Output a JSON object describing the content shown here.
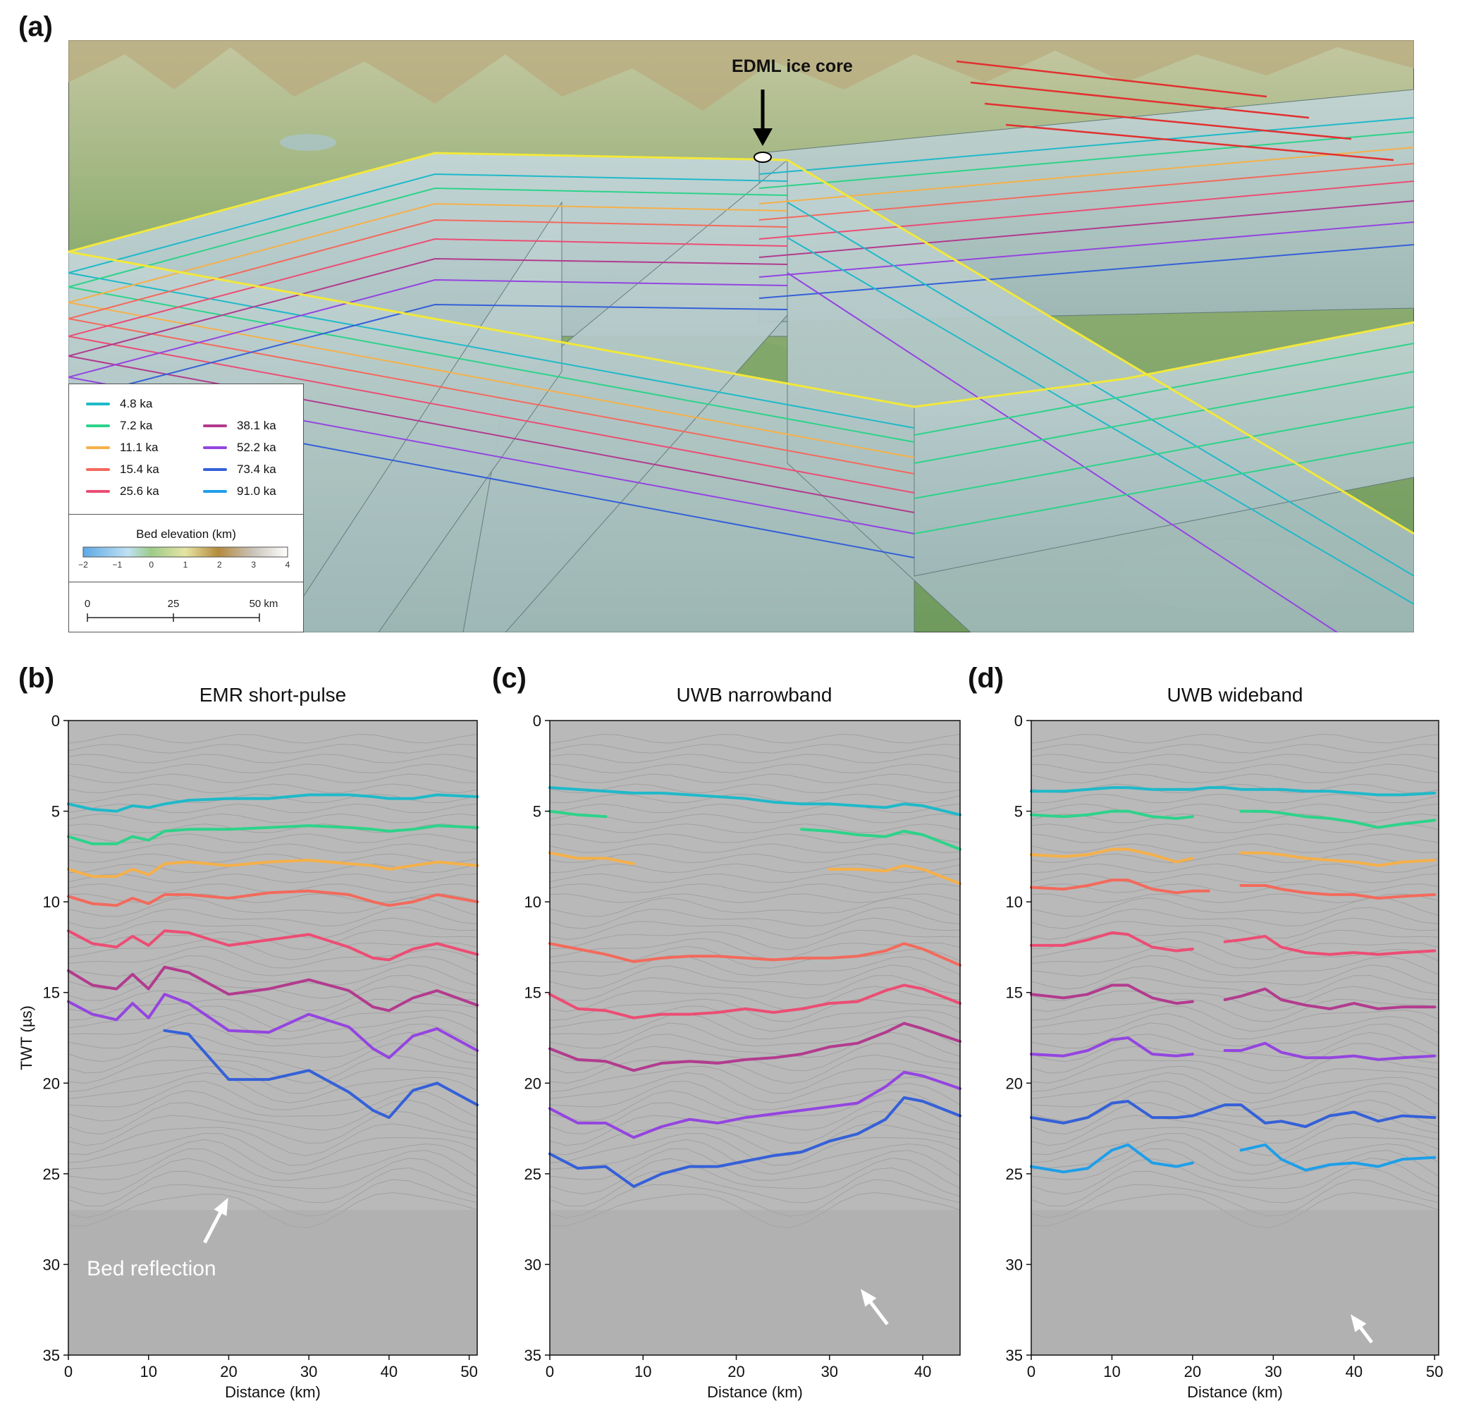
{
  "panels": {
    "a": {
      "label": "(a)",
      "annotation": "EDML ice core"
    },
    "b": {
      "label": "(b)",
      "title": "EMR short-pulse",
      "annotation": "Bed reflection"
    },
    "c": {
      "label": "(c)",
      "title": "UWB narrowband"
    },
    "d": {
      "label": "(d)",
      "title": "UWB wideband"
    }
  },
  "legend": {
    "items": [
      {
        "label": "4.8 ka",
        "color": "#1fb9c9"
      },
      {
        "label": "7.2 ka",
        "color": "#2dd38a"
      },
      {
        "label": "11.1 ka",
        "color": "#f5b04a"
      },
      {
        "label": "15.4 ka",
        "color": "#f36a5c"
      },
      {
        "label": "25.6 ka",
        "color": "#ec4d74"
      },
      {
        "label": "38.1 ka",
        "color": "#b23b8e"
      },
      {
        "label": "52.2 ka",
        "color": "#9445e0"
      },
      {
        "label": "73.4 ka",
        "color": "#3560d8"
      },
      {
        "label": "91.0 ka",
        "color": "#1f9fe8"
      }
    ],
    "bed_title": "Bed elevation (km)",
    "bed_ticks": [
      "−2",
      "−1",
      "0",
      "1",
      "2",
      "3",
      "4"
    ],
    "scale_ticks": [
      "0",
      "25",
      "50 km"
    ]
  },
  "chart_data": [
    {
      "type": "line",
      "title": "EMR short-pulse",
      "xlabel": "Distance (km)",
      "ylabel": "TWT (µs)",
      "xlim": [
        0,
        51
      ],
      "ylim": [
        35,
        0
      ],
      "xticks": [
        "0",
        "10",
        "20",
        "30",
        "40",
        "50"
      ],
      "yticks": [
        "0",
        "5",
        "10",
        "15",
        "20",
        "25",
        "30",
        "35"
      ],
      "x": [
        0,
        3,
        6,
        8,
        10,
        12,
        15,
        20,
        25,
        30,
        35,
        38,
        40,
        43,
        46,
        51
      ],
      "series": [
        {
          "values": [
            4.6,
            4.9,
            5.0,
            4.7,
            4.8,
            4.6,
            4.4,
            4.3,
            4.3,
            4.1,
            4.1,
            4.2,
            4.3,
            4.3,
            4.1,
            4.2
          ]
        },
        {
          "values": [
            6.4,
            6.8,
            6.8,
            6.4,
            6.6,
            6.1,
            6.0,
            6.0,
            5.9,
            5.8,
            5.9,
            6.0,
            6.1,
            6.0,
            5.8,
            5.9
          ]
        },
        {
          "values": [
            8.2,
            8.6,
            8.6,
            8.2,
            8.5,
            7.9,
            7.8,
            8.0,
            7.8,
            7.7,
            7.9,
            8.0,
            8.2,
            8.0,
            7.8,
            8.0
          ]
        },
        {
          "values": [
            9.7,
            10.1,
            10.2,
            9.8,
            10.1,
            9.6,
            9.6,
            9.8,
            9.5,
            9.4,
            9.6,
            10.0,
            10.2,
            10.0,
            9.6,
            10.0
          ]
        },
        {
          "values": [
            11.6,
            12.3,
            12.5,
            11.9,
            12.4,
            11.6,
            11.7,
            12.4,
            12.1,
            11.8,
            12.5,
            13.1,
            13.2,
            12.6,
            12.3,
            12.9
          ]
        },
        {
          "values": [
            13.8,
            14.6,
            14.8,
            14.0,
            14.8,
            13.6,
            13.9,
            15.1,
            14.8,
            14.3,
            14.9,
            15.8,
            16.0,
            15.3,
            14.9,
            15.7
          ]
        },
        {
          "values": [
            15.5,
            16.2,
            16.5,
            15.6,
            16.4,
            15.1,
            15.6,
            17.1,
            17.2,
            16.2,
            16.9,
            18.1,
            18.6,
            17.4,
            17.0,
            18.2
          ]
        },
        {
          "values": [
            null,
            null,
            null,
            null,
            null,
            17.1,
            17.3,
            19.8,
            19.8,
            19.3,
            20.5,
            21.5,
            21.9,
            20.4,
            20.0,
            21.2
          ]
        }
      ]
    },
    {
      "type": "line",
      "title": "UWB narrowband",
      "xlabel": "Distance (km)",
      "ylabel": "",
      "xlim": [
        0,
        44
      ],
      "ylim": [
        35,
        0
      ],
      "xticks": [
        "0",
        "10",
        "20",
        "30",
        "40"
      ],
      "yticks": [
        "0",
        "5",
        "10",
        "15",
        "20",
        "25",
        "30",
        "35"
      ],
      "x": [
        0,
        3,
        6,
        9,
        12,
        15,
        18,
        21,
        24,
        27,
        30,
        33,
        36,
        38,
        40,
        44
      ],
      "series": [
        {
          "values": [
            3.7,
            3.8,
            3.9,
            4.0,
            4.0,
            4.1,
            4.2,
            4.3,
            4.5,
            4.6,
            4.6,
            4.7,
            4.8,
            4.6,
            4.7,
            5.2
          ]
        },
        {
          "values": [
            5.0,
            5.2,
            5.3,
            null,
            null,
            null,
            null,
            null,
            null,
            6.0,
            6.1,
            6.3,
            6.4,
            6.1,
            6.3,
            7.1
          ]
        },
        {
          "values": [
            7.3,
            7.6,
            7.6,
            7.9,
            null,
            null,
            null,
            null,
            null,
            null,
            8.2,
            8.2,
            8.3,
            8.0,
            8.2,
            9.0
          ]
        },
        {
          "values": [
            12.3,
            12.6,
            12.9,
            13.3,
            13.1,
            13.0,
            13.0,
            13.1,
            13.2,
            13.1,
            13.1,
            13.0,
            12.7,
            12.3,
            12.6,
            13.5
          ]
        },
        {
          "values": [
            15.1,
            15.9,
            16.0,
            16.4,
            16.2,
            16.2,
            16.1,
            15.9,
            16.1,
            15.9,
            15.6,
            15.5,
            14.9,
            14.6,
            14.8,
            15.6
          ]
        },
        {
          "values": [
            18.1,
            18.7,
            18.8,
            19.3,
            18.9,
            18.8,
            18.9,
            18.7,
            18.6,
            18.4,
            18.0,
            17.8,
            17.2,
            16.7,
            17.0,
            17.7
          ]
        },
        {
          "values": [
            21.4,
            22.2,
            22.2,
            23.0,
            22.4,
            22.0,
            22.2,
            21.9,
            21.7,
            21.5,
            21.3,
            21.1,
            20.2,
            19.4,
            19.6,
            20.3
          ]
        },
        {
          "values": [
            23.9,
            24.7,
            24.6,
            25.7,
            25.0,
            24.6,
            24.6,
            24.3,
            24.0,
            23.8,
            23.2,
            22.8,
            22.0,
            20.8,
            21.0,
            21.8
          ]
        }
      ]
    },
    {
      "type": "line",
      "title": "UWB wideband",
      "xlabel": "Distance (km)",
      "ylabel": "",
      "xlim": [
        0,
        50.5
      ],
      "ylim": [
        35,
        0
      ],
      "xticks": [
        "0",
        "10",
        "20",
        "30",
        "40",
        "50"
      ],
      "yticks": [
        "0",
        "5",
        "10",
        "15",
        "20",
        "25",
        "30",
        "35"
      ],
      "x": [
        0,
        4,
        7,
        10,
        12,
        15,
        18,
        20,
        22,
        24,
        26,
        29,
        31,
        34,
        37,
        40,
        43,
        46,
        50
      ],
      "series": [
        {
          "values": [
            3.9,
            3.9,
            3.8,
            3.7,
            3.7,
            3.8,
            3.8,
            3.8,
            3.7,
            3.7,
            3.8,
            3.8,
            3.8,
            3.9,
            3.9,
            4.0,
            4.1,
            4.1,
            4.0
          ]
        },
        {
          "values": [
            5.2,
            5.3,
            5.2,
            5.0,
            5.0,
            5.3,
            5.4,
            5.3,
            null,
            null,
            5.0,
            5.0,
            5.1,
            5.3,
            5.4,
            5.6,
            5.9,
            5.7,
            5.5
          ]
        },
        {
          "values": [
            7.4,
            7.5,
            7.4,
            7.1,
            7.1,
            7.4,
            7.8,
            7.6,
            null,
            null,
            7.3,
            7.3,
            7.4,
            7.6,
            7.7,
            7.8,
            8.0,
            7.8,
            7.7
          ]
        },
        {
          "values": [
            9.2,
            9.3,
            9.1,
            8.8,
            8.8,
            9.3,
            9.5,
            9.4,
            9.4,
            null,
            9.1,
            9.1,
            9.3,
            9.5,
            9.6,
            9.6,
            9.8,
            9.7,
            9.6
          ]
        },
        {
          "values": [
            12.4,
            12.4,
            12.1,
            11.7,
            11.8,
            12.5,
            12.7,
            12.6,
            null,
            12.2,
            12.1,
            11.9,
            12.5,
            12.8,
            12.9,
            12.8,
            12.9,
            12.8,
            12.7
          ]
        },
        {
          "values": [
            15.1,
            15.3,
            15.1,
            14.6,
            14.6,
            15.3,
            15.6,
            15.5,
            null,
            15.4,
            15.2,
            14.8,
            15.4,
            15.7,
            15.9,
            15.6,
            15.9,
            15.8,
            15.8
          ]
        },
        {
          "values": [
            18.4,
            18.5,
            18.2,
            17.6,
            17.5,
            18.4,
            18.5,
            18.4,
            null,
            18.2,
            18.2,
            17.8,
            18.3,
            18.6,
            18.6,
            18.5,
            18.7,
            18.6,
            18.5
          ]
        },
        {
          "values": [
            21.9,
            22.2,
            21.9,
            21.1,
            21.0,
            21.9,
            21.9,
            21.8,
            21.5,
            21.2,
            21.2,
            22.2,
            22.1,
            22.4,
            21.8,
            21.6,
            22.1,
            21.8,
            21.9
          ]
        },
        {
          "values": [
            24.6,
            24.9,
            24.7,
            23.7,
            23.4,
            24.4,
            24.6,
            24.4,
            null,
            null,
            23.7,
            23.4,
            24.2,
            24.8,
            24.5,
            24.4,
            24.6,
            24.2,
            24.1
          ]
        }
      ]
    }
  ]
}
